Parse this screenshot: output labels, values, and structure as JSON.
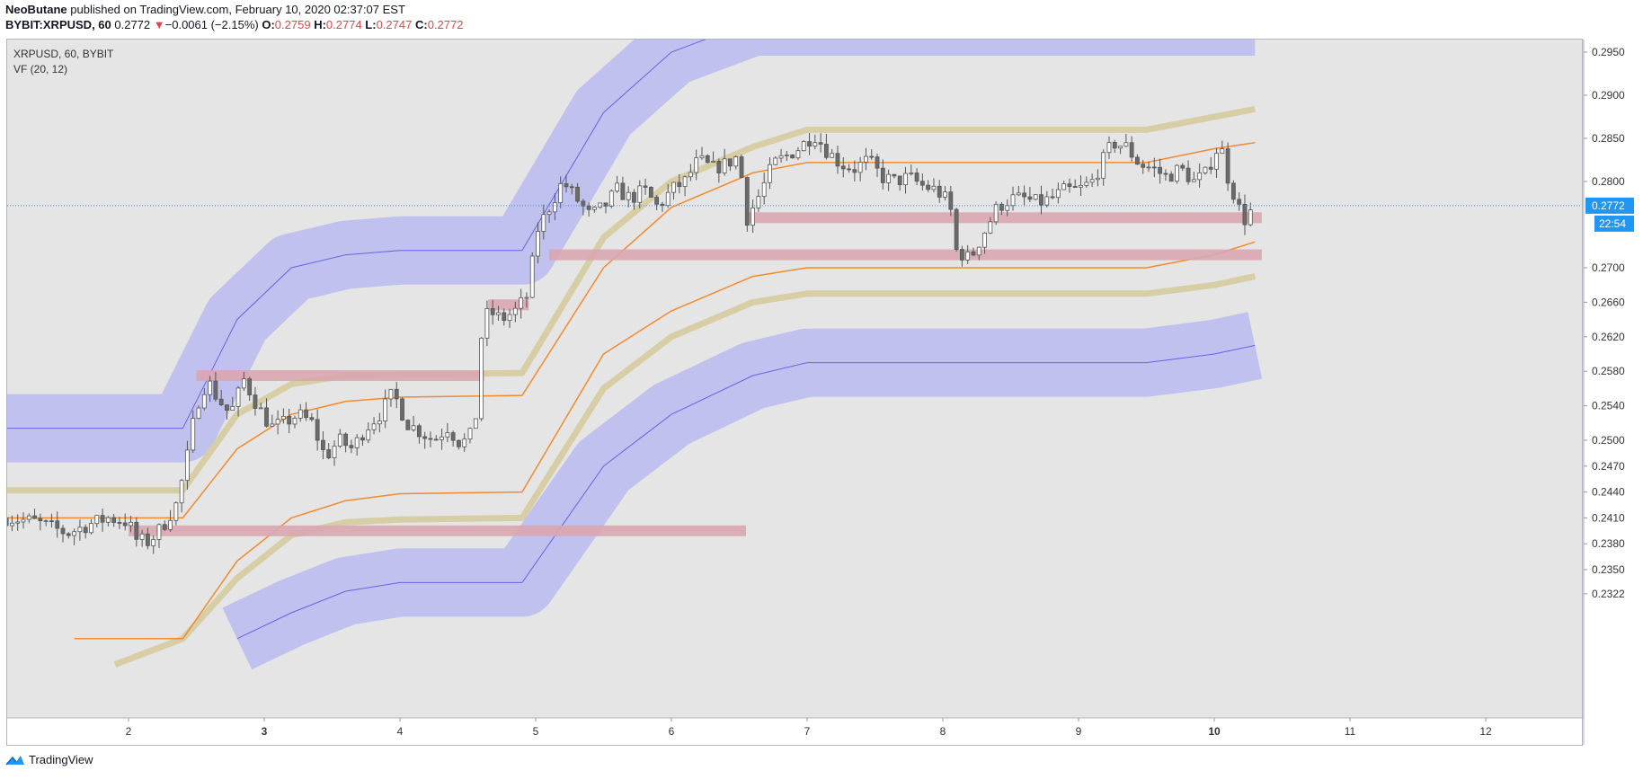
{
  "header": {
    "author": "NeoButane",
    "published_text": "published on TradingView.com, February 10, 2020 02:37:07 EST",
    "symbol": "BYBIT:XRPUSD, 60",
    "last": "0.2772",
    "arrow": "▼",
    "change": "−0.0061 (−2.15%)",
    "o_label": "O:",
    "o": "0.2759",
    "h_label": "H:",
    "h": "0.2774",
    "l_label": "L:",
    "l": "0.2747",
    "c_label": "C:",
    "c": "0.2772"
  },
  "legend": {
    "title": "XRPUSD, 60, BYBIT",
    "indicator": "VF  (20, 12)"
  },
  "footer": {
    "brand": "TradingView"
  },
  "colors": {
    "background": "#e5e5e5",
    "band_fill": "#bcbcf0",
    "band_line": "#6464e6",
    "tan": "#d7cea6",
    "orange": "#f28a2e",
    "zone": "#d9a6b0",
    "price_line": "#3d8fd6",
    "price_badge": "#2196f3",
    "red": "#e0474c"
  },
  "chart_data": {
    "type": "candlestick",
    "title": "XRPUSD, 60, BYBIT",
    "indicator": "VF (20, 12)",
    "x_ticks": [
      "2",
      "3",
      "4",
      "5",
      "6",
      "7",
      "8",
      "9",
      "10",
      "11",
      "12"
    ],
    "x_tick_bold": [
      "3",
      "10"
    ],
    "x_range_days": [
      1.1,
      12.75
    ],
    "y_ticks": [
      "0.2950",
      "0.2900",
      "0.2850",
      "0.2800",
      "0.2700",
      "0.2660",
      "0.2620",
      "0.2580",
      "0.2540",
      "0.2500",
      "0.2470",
      "0.2440",
      "0.2410",
      "0.2380",
      "0.2350",
      "0.2322"
    ],
    "last_price": "0.2772",
    "countdown": "22:54",
    "price_path": [
      [
        1.1,
        0.241
      ],
      [
        1.3,
        0.2406
      ],
      [
        1.45,
        0.2398
      ],
      [
        1.55,
        0.2392
      ],
      [
        1.7,
        0.2402
      ],
      [
        1.85,
        0.241
      ],
      [
        2.0,
        0.2405
      ],
      [
        2.05,
        0.2385
      ],
      [
        2.15,
        0.2382
      ],
      [
        2.25,
        0.24
      ],
      [
        2.35,
        0.2425
      ],
      [
        2.42,
        0.247
      ],
      [
        2.5,
        0.254
      ],
      [
        2.58,
        0.257
      ],
      [
        2.65,
        0.255
      ],
      [
        2.75,
        0.253
      ],
      [
        2.85,
        0.257
      ],
      [
        2.95,
        0.254
      ],
      [
        3.05,
        0.2515
      ],
      [
        3.15,
        0.252
      ],
      [
        3.25,
        0.253
      ],
      [
        3.35,
        0.252
      ],
      [
        3.45,
        0.248
      ],
      [
        3.55,
        0.25
      ],
      [
        3.65,
        0.249
      ],
      [
        3.75,
        0.2515
      ],
      [
        3.85,
        0.253
      ],
      [
        3.95,
        0.2555
      ],
      [
        4.05,
        0.252
      ],
      [
        4.15,
        0.251
      ],
      [
        4.25,
        0.25
      ],
      [
        4.35,
        0.2515
      ],
      [
        4.45,
        0.2495
      ],
      [
        4.55,
        0.251
      ],
      [
        4.6,
        0.262
      ],
      [
        4.65,
        0.265
      ],
      [
        4.75,
        0.264
      ],
      [
        4.85,
        0.265
      ],
      [
        4.95,
        0.267
      ],
      [
        5.0,
        0.274
      ],
      [
        5.1,
        0.277
      ],
      [
        5.2,
        0.28
      ],
      [
        5.3,
        0.278
      ],
      [
        5.4,
        0.276
      ],
      [
        5.5,
        0.277
      ],
      [
        5.6,
        0.279
      ],
      [
        5.7,
        0.278
      ],
      [
        5.8,
        0.279
      ],
      [
        5.9,
        0.277
      ],
      [
        6.0,
        0.279
      ],
      [
        6.1,
        0.28
      ],
      [
        6.2,
        0.2825
      ],
      [
        6.3,
        0.2815
      ],
      [
        6.4,
        0.282
      ],
      [
        6.5,
        0.283
      ],
      [
        6.55,
        0.2755
      ],
      [
        6.65,
        0.2785
      ],
      [
        6.75,
        0.282
      ],
      [
        6.85,
        0.283
      ],
      [
        6.95,
        0.284
      ],
      [
        7.05,
        0.2855
      ],
      [
        7.15,
        0.2835
      ],
      [
        7.25,
        0.282
      ],
      [
        7.35,
        0.2815
      ],
      [
        7.45,
        0.2825
      ],
      [
        7.55,
        0.2805
      ],
      [
        7.65,
        0.28
      ],
      [
        7.75,
        0.2805
      ],
      [
        7.85,
        0.2795
      ],
      [
        7.95,
        0.279
      ],
      [
        8.05,
        0.2775
      ],
      [
        8.1,
        0.272
      ],
      [
        8.2,
        0.271
      ],
      [
        8.3,
        0.274
      ],
      [
        8.4,
        0.277
      ],
      [
        8.5,
        0.278
      ],
      [
        8.6,
        0.278
      ],
      [
        8.7,
        0.2775
      ],
      [
        8.8,
        0.278
      ],
      [
        8.9,
        0.279
      ],
      [
        9.0,
        0.279
      ],
      [
        9.1,
        0.28
      ],
      [
        9.2,
        0.283
      ],
      [
        9.25,
        0.2845
      ],
      [
        9.35,
        0.284
      ],
      [
        9.45,
        0.282
      ],
      [
        9.55,
        0.2815
      ],
      [
        9.65,
        0.2805
      ],
      [
        9.75,
        0.2815
      ],
      [
        9.85,
        0.28
      ],
      [
        9.95,
        0.281
      ],
      [
        10.0,
        0.2835
      ],
      [
        10.05,
        0.284
      ],
      [
        10.1,
        0.2805
      ],
      [
        10.18,
        0.277
      ],
      [
        10.22,
        0.2755
      ],
      [
        10.3,
        0.2772
      ]
    ],
    "vf_center": [
      [
        1.1,
        0.2514
      ],
      [
        2.4,
        0.2514
      ],
      [
        2.8,
        0.264
      ],
      [
        3.2,
        0.27
      ],
      [
        3.6,
        0.2715
      ],
      [
        4.0,
        0.272
      ],
      [
        4.9,
        0.272
      ],
      [
        5.5,
        0.288
      ],
      [
        6.0,
        0.295
      ],
      [
        6.6,
        0.302
      ],
      [
        7.0,
        0.305
      ],
      [
        7.4,
        0.305
      ],
      [
        9.5,
        0.305
      ],
      [
        10.0,
        0.3055
      ],
      [
        10.3,
        0.306
      ]
    ],
    "vf_upper_orange": [
      [
        1.1,
        0.241
      ],
      [
        2.4,
        0.241
      ],
      [
        2.8,
        0.249
      ],
      [
        3.2,
        0.253
      ],
      [
        3.6,
        0.2545
      ],
      [
        4.0,
        0.255
      ],
      [
        4.9,
        0.2552
      ],
      [
        5.5,
        0.27
      ],
      [
        6.0,
        0.277
      ],
      [
        6.6,
        0.281
      ],
      [
        7.0,
        0.2822
      ],
      [
        9.5,
        0.2822
      ],
      [
        10.0,
        0.2838
      ],
      [
        10.3,
        0.2845
      ]
    ],
    "vf_upper_tan": [
      [
        1.1,
        0.2442
      ],
      [
        2.4,
        0.2442
      ],
      [
        2.8,
        0.253
      ],
      [
        3.2,
        0.2565
      ],
      [
        3.6,
        0.2575
      ],
      [
        4.0,
        0.2576
      ],
      [
        4.9,
        0.2578
      ],
      [
        5.5,
        0.2735
      ],
      [
        6.0,
        0.28
      ],
      [
        6.6,
        0.284
      ],
      [
        7.0,
        0.286
      ],
      [
        9.5,
        0.286
      ],
      [
        10.0,
        0.2875
      ],
      [
        10.3,
        0.2884
      ]
    ],
    "vf_lower_orange": [
      [
        1.6,
        0.227
      ],
      [
        2.4,
        0.227
      ],
      [
        2.8,
        0.236
      ],
      [
        3.2,
        0.241
      ],
      [
        3.6,
        0.243
      ],
      [
        4.0,
        0.2438
      ],
      [
        4.9,
        0.244
      ],
      [
        5.5,
        0.26
      ],
      [
        6.0,
        0.265
      ],
      [
        6.6,
        0.269
      ],
      [
        7.0,
        0.27
      ],
      [
        9.5,
        0.27
      ],
      [
        10.0,
        0.2715
      ],
      [
        10.3,
        0.273
      ]
    ],
    "vf_lower_tan": [
      [
        1.9,
        0.224
      ],
      [
        2.4,
        0.227
      ],
      [
        2.8,
        0.234
      ],
      [
        3.2,
        0.239
      ],
      [
        3.6,
        0.2405
      ],
      [
        4.0,
        0.2408
      ],
      [
        4.9,
        0.241
      ],
      [
        5.5,
        0.256
      ],
      [
        6.0,
        0.262
      ],
      [
        6.6,
        0.266
      ],
      [
        7.0,
        0.267
      ],
      [
        9.5,
        0.267
      ],
      [
        10.0,
        0.268
      ],
      [
        10.3,
        0.269
      ]
    ],
    "vf_lower_band": [
      [
        2.8,
        0.227
      ],
      [
        3.2,
        0.23
      ],
      [
        3.6,
        0.2325
      ],
      [
        4.0,
        0.2335
      ],
      [
        4.9,
        0.2335
      ],
      [
        5.5,
        0.247
      ],
      [
        6.0,
        0.253
      ],
      [
        6.6,
        0.2575
      ],
      [
        7.0,
        0.259
      ],
      [
        9.5,
        0.259
      ],
      [
        10.0,
        0.26
      ],
      [
        10.3,
        0.261
      ]
    ],
    "zones": [
      {
        "x0": 2.5,
        "x1": 4.62,
        "y": 0.2575
      },
      {
        "x0": 4.65,
        "x1": 4.95,
        "y": 0.2657
      },
      {
        "x0": 2.0,
        "x1": 6.55,
        "y": 0.2395
      },
      {
        "x0": 6.55,
        "x1": 10.35,
        "y": 0.2758
      },
      {
        "x0": 5.1,
        "x1": 10.35,
        "y": 0.2715
      }
    ]
  }
}
